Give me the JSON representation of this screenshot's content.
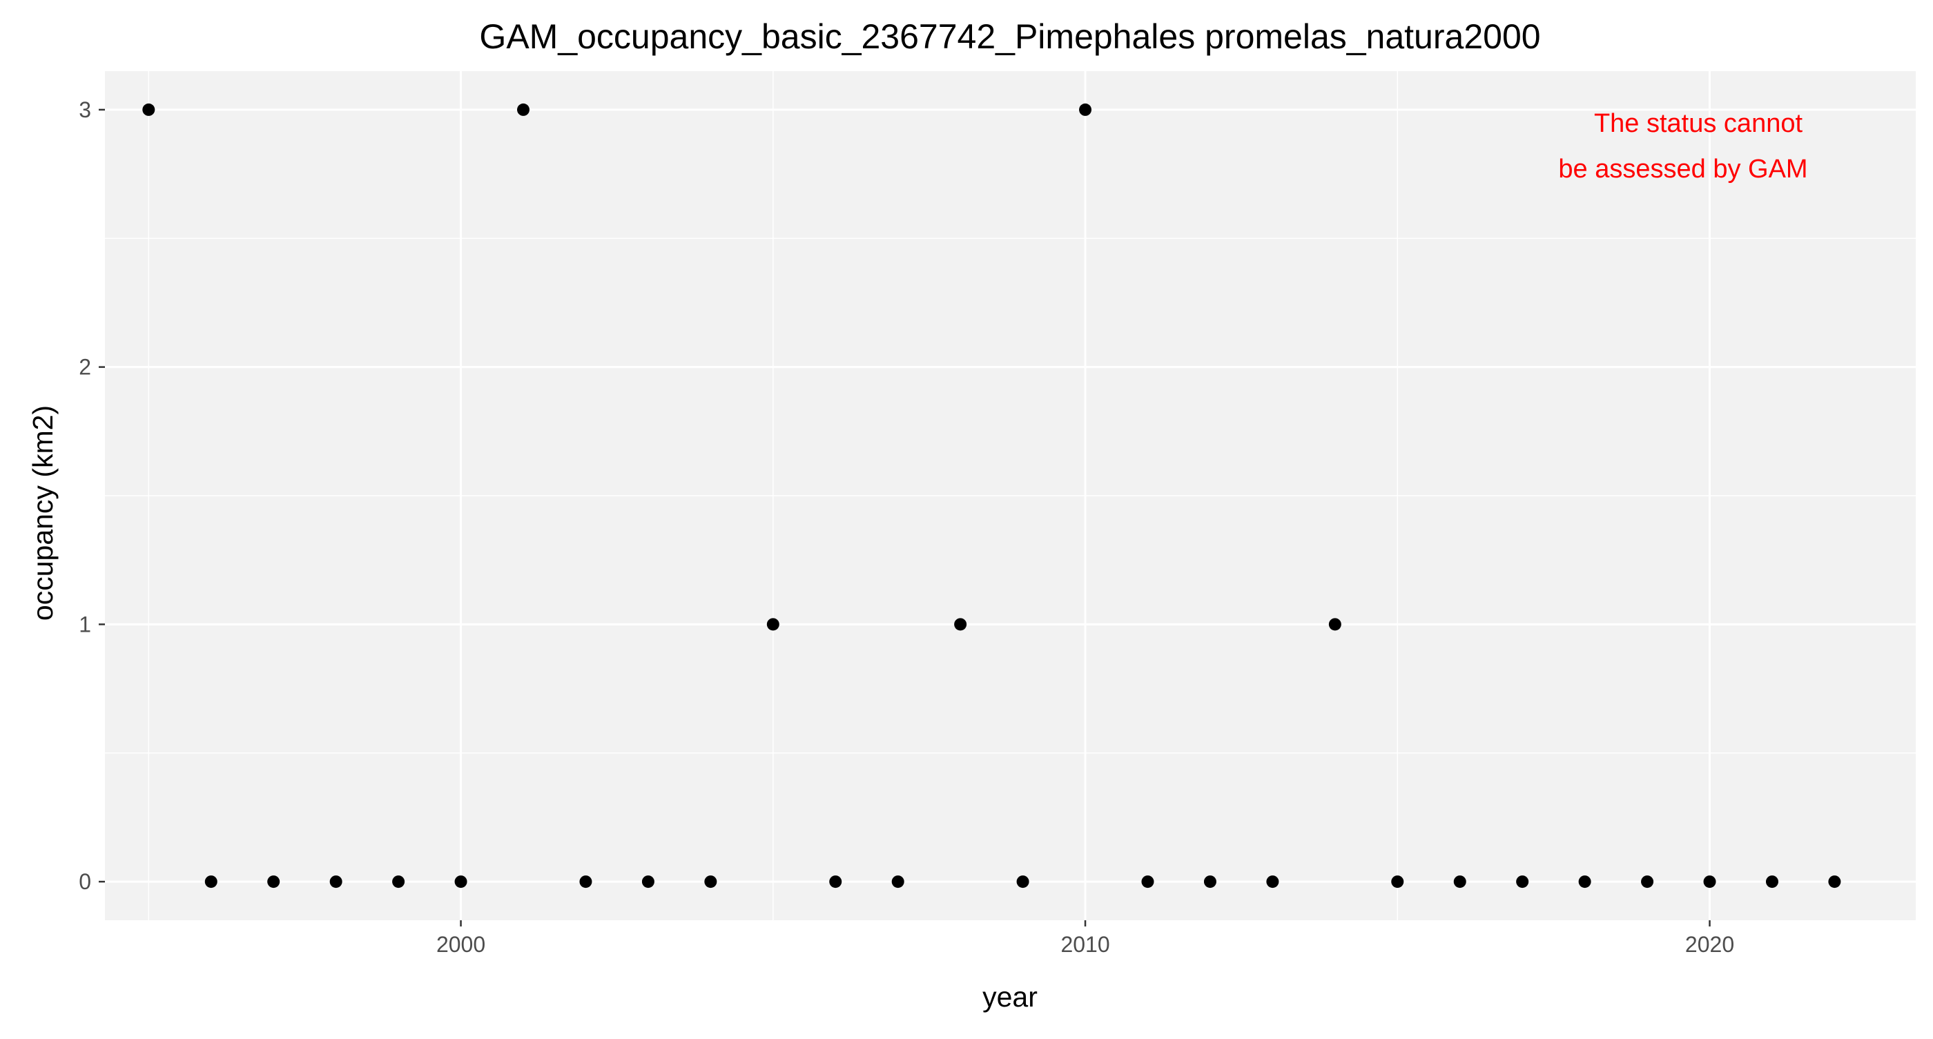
{
  "chart_data": {
    "type": "scatter",
    "title": "GAM_occupancy_basic_2367742_Pimephales promelas_natura2000",
    "xlabel": "year",
    "ylabel": "occupancy (km2)",
    "xlim": [
      1994.3,
      2023.3
    ],
    "ylim": [
      -0.15,
      3.15
    ],
    "x_ticks": [
      2000,
      2010,
      2020
    ],
    "y_ticks": [
      0,
      1,
      2,
      3
    ],
    "grid": true,
    "legend": "none",
    "annotation": {
      "lines": [
        "The status cannot",
        "be assessed by GAM"
      ],
      "color": "#ff0000",
      "placement": "top-right"
    },
    "colors": {
      "panel": "#f2f2f2",
      "grid": "#ffffff",
      "point": "#000000"
    },
    "series": [
      {
        "x": [
          1995,
          1996,
          1997,
          1998,
          1999,
          2000,
          2001,
          2002,
          2003,
          2004,
          2005,
          2006,
          2007,
          2008,
          2009,
          2010,
          2011,
          2012,
          2013,
          2014,
          2015,
          2016,
          2017,
          2018,
          2019,
          2020,
          2021,
          2022
        ],
        "y": [
          3,
          0,
          0,
          0,
          0,
          0,
          3,
          0,
          0,
          0,
          1,
          0,
          0,
          1,
          0,
          3,
          0,
          0,
          0,
          1,
          0,
          0,
          0,
          0,
          0,
          0,
          0,
          0
        ]
      }
    ]
  }
}
